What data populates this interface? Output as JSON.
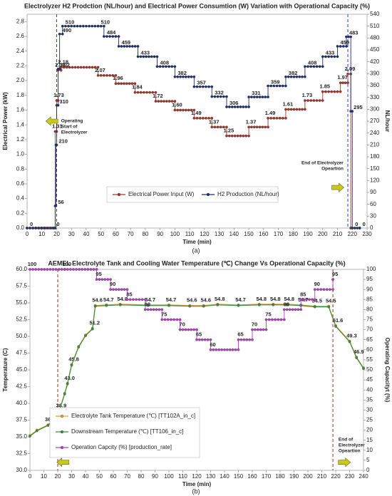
{
  "chart_data": [
    {
      "type": "line",
      "title": "Electrolyzer H2 Prodction (NL/hour) and Electrical Power Consumtion (W) Variation with Operational Capacity (%)",
      "x_label": "Time (min)",
      "y_label": "Electrical Power (kW)",
      "y2_label": "NL/hour",
      "caption": "(a)",
      "xlim": [
        0,
        230
      ],
      "xticks": [
        0,
        10,
        20,
        30,
        40,
        50,
        60,
        70,
        80,
        90,
        100,
        110,
        120,
        130,
        140,
        150,
        160,
        170,
        180,
        190,
        200,
        210,
        220,
        230
      ],
      "ylim": [
        0,
        2.9
      ],
      "yticks": [
        {
          "value": 0,
          "label": "0.0"
        },
        0.2,
        0.4,
        0.6,
        0.8,
        {
          "value": 1,
          "label": "1.0"
        },
        1.2,
        1.4,
        1.6,
        1.8,
        {
          "value": 2,
          "label": "2.0"
        },
        2.2,
        2.4,
        2.6,
        2.8
      ],
      "y2lim": [
        0,
        540
      ],
      "y2ticks": [
        0,
        30,
        60,
        90,
        120,
        150,
        180,
        210,
        240,
        270,
        300,
        330,
        360,
        390,
        420,
        450,
        480,
        510,
        540
      ],
      "grid": false,
      "legend": "center",
      "vlines": [
        20,
        217
      ],
      "vline_color": "#2a3bd6",
      "annotations": [
        [
          "Operating",
          "Start of",
          "Electrolyzer"
        ],
        [
          "End of Electrolyzer",
          "Opeartion"
        ]
      ],
      "series": [
        {
          "name": "Electrical Power Input (W)",
          "color": "#a0342a",
          "label_color": "#c0201a",
          "step": true,
          "x": [
            0,
            19,
            20,
            21,
            23,
            48,
            60,
            73,
            87,
            100,
            113,
            125,
            135,
            150,
            163,
            175,
            188,
            200,
            212,
            217,
            219
          ],
          "values": [
            0,
            1.31,
            1.73,
            2.14,
            2.18,
            2.07,
            1.96,
            1.84,
            1.72,
            1.6,
            1.49,
            1.37,
            1.25,
            1.37,
            1.49,
            1.61,
            1.73,
            1.85,
            1.97,
            2.09,
            0
          ],
          "value_labels": [
            null,
            "1.31",
            "1.73",
            "2.14",
            "2.18",
            "2.07",
            "1.96",
            "1.84",
            "1.72",
            "1.60",
            "1.49",
            "1.37",
            "1.25",
            "1.37",
            "1.49",
            "1.61",
            "1.73",
            "1.85",
            "1.97",
            "2.09",
            null
          ]
        },
        {
          "name": "H2 Production (NL/hour)",
          "color": "#1f2d6b",
          "label_color": "#1f2d6b",
          "step": true,
          "axis": "y2",
          "x": [
            0,
            18,
            19,
            19.5,
            20,
            21,
            22,
            24,
            48,
            52,
            62,
            75,
            88,
            100,
            113,
            125,
            135,
            150,
            163,
            175,
            188,
            200,
            210,
            216,
            219,
            220,
            225
          ],
          "values": [
            0,
            0,
            56,
            210,
            310,
            402,
            490,
            510,
            510,
            484,
            459,
            433,
            408,
            382,
            357,
            332,
            306,
            331,
            359,
            382,
            408,
            433,
            459,
            483,
            295,
            0,
            0
          ],
          "value_labels": [
            "0",
            "0",
            "56",
            "210",
            "310",
            "402",
            "490",
            "510",
            "510",
            "484",
            "459",
            "433",
            "408",
            "382",
            "357",
            "332",
            "306",
            "331",
            "359",
            "382",
            "408",
            "433",
            "459",
            "483",
            "295",
            "0",
            "0"
          ]
        }
      ]
    },
    {
      "type": "line",
      "title": "AEMEL Electrolyte Tank and Cooling Water Temperature (℃) Change Vs Operational Capacity (%)",
      "x_label": "Time (min)",
      "y_label": "Temperature (C)",
      "y2_label": "Operating Capacityt (%)",
      "caption": "(b)",
      "xlim": [
        0,
        240
      ],
      "xticks": [
        0,
        10,
        20,
        30,
        40,
        50,
        60,
        70,
        80,
        90,
        100,
        110,
        120,
        130,
        140,
        150,
        160,
        170,
        180,
        190,
        200,
        210,
        220,
        230,
        240
      ],
      "ylim": [
        30,
        60
      ],
      "yticks": [
        {
          "value": 30,
          "label": "30.0"
        },
        32.5,
        {
          "value": 35,
          "label": "35.0"
        },
        37.5,
        {
          "value": 40,
          "label": "40.0"
        },
        42.5,
        {
          "value": 45,
          "label": "45.0"
        },
        47.5,
        {
          "value": 50,
          "label": "50.0"
        },
        52.5,
        {
          "value": 55,
          "label": "55.0"
        },
        57.5,
        {
          "value": 60,
          "label": "60.0"
        }
      ],
      "y2lim": [
        0,
        100
      ],
      "y2ticks": [
        0,
        5,
        10,
        15,
        20,
        25,
        30,
        35,
        40,
        45,
        50,
        55,
        60,
        65,
        70,
        75,
        80,
        85,
        90,
        95,
        100
      ],
      "grid": false,
      "legend": "lower left",
      "vlines": [
        20,
        218
      ],
      "vline_color": "#9a3020",
      "annotations": [
        [
          "Operating",
          "Start of",
          "Electrolyzer"
        ],
        [
          "End of",
          "Electrolyzer",
          "Opeartion"
        ]
      ],
      "series": [
        {
          "name": "Electrolyte Tank Temperature (℃) [TT102A_in_c]",
          "color": "#e0a030",
          "label_color": "#222",
          "x": [
            0,
            5,
            13,
            18,
            21,
            25,
            27,
            30,
            35,
            40,
            45,
            47,
            55,
            65,
            85,
            100,
            115,
            125,
            135,
            150,
            165,
            175,
            185,
            195,
            205,
            215,
            220,
            230,
            235,
            240
          ],
          "values": [
            35.2,
            36.0,
            36.8,
            37.8,
            38.9,
            41.5,
            43.0,
            45.8,
            48.5,
            50.2,
            51.2,
            54.6,
            54.7,
            54.8,
            54.7,
            54.7,
            54.6,
            54.6,
            54.8,
            54.7,
            54.8,
            54.8,
            54.8,
            54.7,
            54.5,
            54.5,
            51.6,
            49.3,
            46.9,
            45.3
          ],
          "value_labels": [
            null,
            null,
            "36.8",
            null,
            "38.9",
            null,
            "43.0",
            "45.8",
            null,
            null,
            "51.2",
            "54.6",
            "54.7",
            "54.8",
            "54.7",
            "54.7",
            "54.6",
            "54.6",
            "54.8",
            "54.7",
            "54.8",
            "54.8",
            "54.8",
            "54.7",
            "54.5",
            "54.5",
            "51.6",
            "49.3",
            "46.9",
            null
          ]
        },
        {
          "name": "Downstream Temperature (℃) [TT106_in_c]",
          "color": "#3c8c3c",
          "x": [
            0,
            5,
            13,
            18,
            21,
            25,
            27,
            30,
            35,
            40,
            45,
            47,
            55,
            65,
            85,
            100,
            115,
            125,
            135,
            150,
            165,
            175,
            185,
            195,
            205,
            215,
            220,
            230,
            235,
            240
          ],
          "values": [
            35.1,
            35.9,
            36.7,
            37.7,
            38.8,
            41.4,
            42.9,
            45.7,
            48.4,
            50.1,
            51.1,
            54.5,
            54.6,
            54.7,
            54.6,
            54.6,
            54.5,
            54.5,
            54.7,
            54.6,
            54.7,
            54.7,
            54.7,
            54.6,
            54.4,
            54.4,
            51.5,
            49.2,
            46.8,
            45.2
          ]
        },
        {
          "name": "Operation Capcity (%) [production_rate]",
          "color": "#b040c0",
          "label_color": "#222",
          "step": true,
          "axis": "y2",
          "x": [
            0,
            25,
            48,
            58,
            70,
            83,
            95,
            108,
            120,
            130,
            150,
            160,
            170,
            183,
            195,
            205,
            218
          ],
          "values": [
            100,
            100,
            95,
            90,
            85,
            80,
            75,
            70,
            65,
            60,
            65,
            70,
            75,
            80,
            85,
            90,
            95
          ],
          "value_labels": [
            "100",
            "100",
            "95",
            "90",
            "85",
            "80",
            "75",
            "70",
            "65",
            "60",
            "65",
            "70",
            "75",
            "80",
            "85",
            "90",
            "95"
          ]
        }
      ]
    }
  ]
}
